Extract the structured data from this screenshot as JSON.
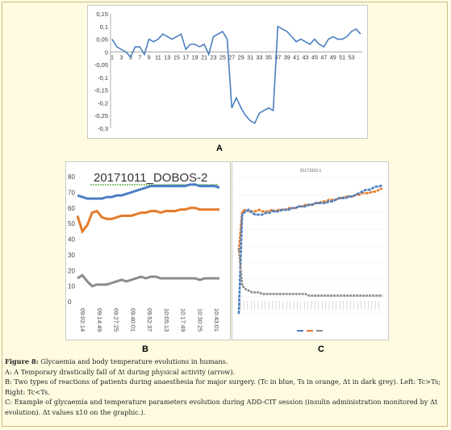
{
  "figure": {
    "labels": {
      "a": "A",
      "b": "B",
      "c": "C"
    },
    "caption": {
      "title_bold": "Figure 8:",
      "title_rest": " Glycaemia and body temperature evolutions in humans.",
      "line_a": "A: A Temporary drastically fall of Δt during physical activity (arrow).",
      "line_b1": "B: Two types of reactions of patients during anaesthesia for major surgery. (Tc in blue, Ts in orange, Δt in dark grey). Left: Tc>Ts;",
      "line_b2": "Right: Tc<Ts.",
      "line_c1": "C: Example of glycaemia and temperature parameters evolution during ADD-CIT session (insulin administration monitored by Δt",
      "line_c2": "evolution). Δt values x10 on the graphic.)."
    }
  },
  "colors": {
    "blue": "#4a7fc1",
    "orange": "#e47b2b",
    "grey": "#8c8c8c",
    "green": "#4aa02c"
  },
  "chart_data": [
    {
      "type": "line",
      "ylim": [
        -0.3,
        0.15
      ],
      "yticks": [
        "0,15",
        "0,1",
        "0,05",
        "0",
        "-0,05",
        "-0,1",
        "-0,15",
        "-0,2",
        "-0,25",
        "-0,3"
      ],
      "xticks": [
        "1",
        "3",
        "5",
        "7",
        "9",
        "11",
        "13",
        "15",
        "17",
        "19",
        "21",
        "23",
        "25",
        "27",
        "29",
        "31",
        "33",
        "35",
        "37",
        "39",
        "41",
        "43",
        "45",
        "47",
        "49",
        "51",
        "53"
      ],
      "grid": false,
      "series": [
        {
          "values": [
            0.05,
            0.02,
            0.01,
            0.0,
            -0.02,
            0.02,
            0.02,
            -0.01,
            0.05,
            0.04,
            0.05,
            0.07,
            0.06,
            0.05,
            0.06,
            0.07,
            0.01,
            0.03,
            0.03,
            0.02,
            0.03,
            -0.01,
            0.06,
            0.07,
            0.08,
            0.05,
            -0.22,
            -0.18,
            -0.22,
            -0.25,
            -0.27,
            -0.28,
            -0.24,
            -0.23,
            -0.22,
            -0.23,
            0.1,
            0.09,
            0.08,
            0.06,
            0.04,
            0.05,
            0.04,
            0.03,
            0.05,
            0.03,
            0.02,
            0.05,
            0.06,
            0.05,
            0.05,
            0.06,
            0.08,
            0.09,
            0.07
          ]
        }
      ]
    },
    {
      "type": "line",
      "title": "20171011_DOBOS-2",
      "ylim": [
        0,
        80
      ],
      "yticks": [
        "0",
        "10",
        "20",
        "30",
        "40",
        "50",
        "60",
        "70",
        "80"
      ],
      "xticks": [
        "09:02:14",
        "09:14:49",
        "09:27:25",
        "09:40:01",
        "09:52:37",
        "10:05:13",
        "10:17:49",
        "10:30:25",
        "10:43:01"
      ],
      "series": [
        {
          "values": [
            68,
            67,
            66,
            66,
            66,
            66,
            67,
            67,
            68,
            68,
            69,
            70,
            71,
            72,
            73,
            74,
            74,
            74,
            74,
            74,
            74,
            74,
            74,
            75,
            75,
            74,
            74,
            74,
            74,
            73
          ]
        },
        {
          "values": [
            55,
            45,
            49,
            57,
            58,
            54,
            53,
            53,
            54,
            55,
            55,
            55,
            56,
            57,
            57,
            58,
            58,
            57,
            58,
            58,
            58,
            59,
            59,
            60,
            60,
            59,
            59,
            59,
            59,
            59
          ]
        },
        {
          "values": [
            15,
            17,
            13,
            10,
            11,
            11,
            11,
            12,
            13,
            14,
            13,
            14,
            15,
            16,
            15,
            16,
            16,
            15,
            15,
            15,
            15,
            15,
            15,
            15,
            15,
            14,
            15,
            15,
            15,
            15
          ]
        }
      ]
    },
    {
      "type": "line",
      "title": "20171003-1",
      "series": [
        {
          "values": [
            38,
            62,
            63,
            62,
            62,
            62,
            63,
            62,
            62,
            62,
            63,
            62,
            63,
            63,
            63,
            64,
            64,
            64,
            65,
            65,
            66,
            66,
            66,
            67,
            67,
            68,
            68,
            69,
            69,
            69,
            70,
            70,
            71,
            71,
            71,
            72,
            72,
            73,
            73,
            73,
            74,
            74,
            75,
            76
          ]
        },
        {
          "values": [
            0,
            60,
            62,
            63,
            61,
            60,
            60,
            60,
            61,
            61,
            62,
            62,
            62,
            63,
            63,
            63,
            64,
            64,
            65,
            65,
            65,
            66,
            66,
            67,
            67,
            67,
            67,
            68,
            68,
            69,
            70,
            70,
            70,
            71,
            71,
            72,
            73,
            74,
            75,
            75,
            76,
            77,
            77,
            78
          ]
        },
        {
          "values": [
            40,
            17,
            15,
            14,
            13,
            13,
            13,
            12,
            12,
            12,
            12,
            12,
            12,
            12,
            12,
            12,
            12,
            12,
            12,
            12,
            12,
            11,
            11,
            11,
            11,
            11,
            11,
            11,
            11,
            11,
            11,
            11,
            11,
            11,
            11,
            11,
            11,
            11,
            11,
            11,
            11,
            11,
            11,
            11
          ]
        }
      ]
    }
  ]
}
